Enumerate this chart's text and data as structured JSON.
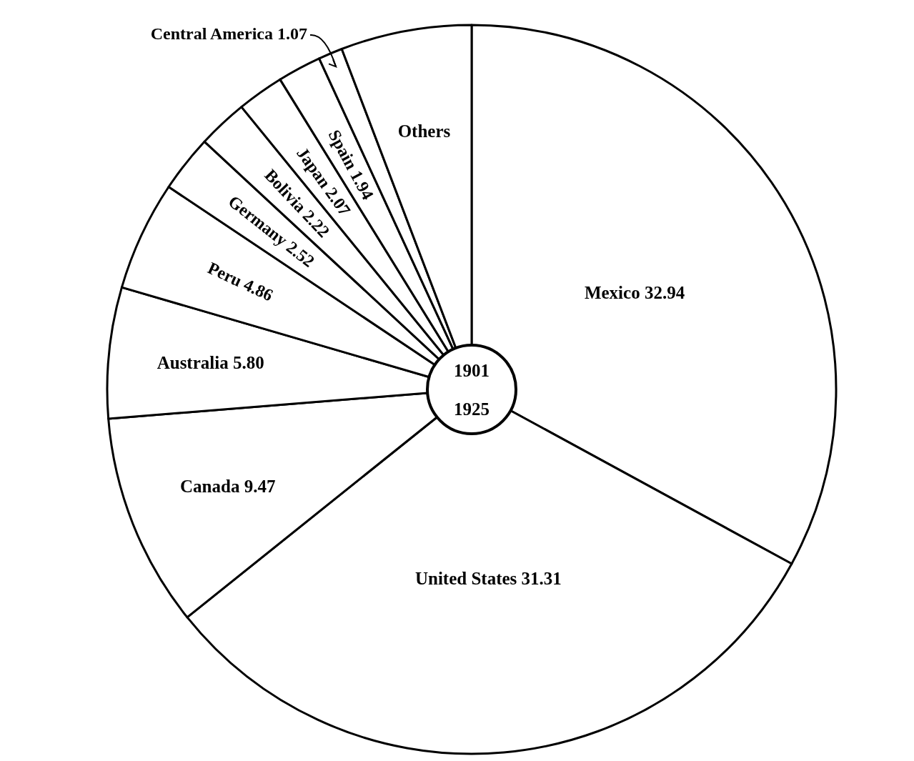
{
  "chart_data": {
    "type": "pie",
    "categories": [
      "Mexico",
      "United States",
      "Canada",
      "Australia",
      "Peru",
      "Germany",
      "Bolivia",
      "Japan",
      "Spain",
      "Central America",
      "Others"
    ],
    "values": [
      32.94,
      31.31,
      9.47,
      5.8,
      4.86,
      2.52,
      2.22,
      2.07,
      1.94,
      1.07,
      5.8
    ],
    "value_labels": [
      "32.94",
      "31.31",
      "9.47",
      "5.80",
      "4.86",
      "2.52",
      "2.22",
      "2.07",
      "1.94",
      "1.07",
      null
    ],
    "colors": [
      "#ffffff",
      "#ffffff",
      "#ffffff",
      "#ffffff",
      "#ffffff",
      "#ffffff",
      "#ffffff",
      "#ffffff",
      "#ffffff",
      "#ffffff",
      "#ffffff"
    ],
    "annotations": [
      "1901",
      "1925"
    ]
  }
}
